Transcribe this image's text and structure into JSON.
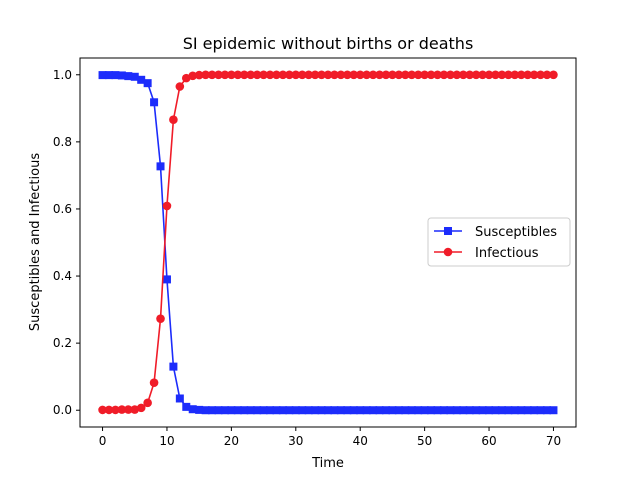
{
  "chart_data": {
    "type": "line",
    "title": "SI epidemic without births or deaths",
    "xlabel": "Time",
    "ylabel": "Susceptibles and Infectious",
    "xlim": [
      -3.5,
      73.5
    ],
    "ylim": [
      -0.05,
      1.05
    ],
    "xticks": [
      0,
      10,
      20,
      30,
      40,
      50,
      60,
      70
    ],
    "yticks": [
      0.0,
      0.2,
      0.4,
      0.6,
      0.8,
      1.0
    ],
    "xtick_labels": [
      "0",
      "10",
      "20",
      "30",
      "40",
      "50",
      "60",
      "70"
    ],
    "ytick_labels": [
      "0.0",
      "0.2",
      "0.4",
      "0.6",
      "0.8",
      "1.0"
    ],
    "grid": false,
    "legend_position": "center-right",
    "x": [
      0,
      1,
      2,
      3,
      4,
      5,
      6,
      7,
      8,
      9,
      10,
      11,
      12,
      13,
      14,
      15,
      16,
      17,
      18,
      19,
      20,
      21,
      22,
      23,
      24,
      25,
      26,
      27,
      28,
      29,
      30,
      31,
      32,
      33,
      34,
      35,
      36,
      37,
      38,
      39,
      40,
      41,
      42,
      43,
      44,
      45,
      46,
      47,
      48,
      49,
      50,
      51,
      52,
      53,
      54,
      55,
      56,
      57,
      58,
      59,
      60,
      61,
      62,
      63,
      64,
      65,
      66,
      67,
      68,
      69,
      70
    ],
    "series": [
      {
        "name": "Susceptibles",
        "color": "#1c2cfb",
        "marker": "square",
        "values": [
          0.999,
          0.999,
          0.999,
          0.998,
          0.996,
          0.994,
          0.985,
          0.975,
          0.918,
          0.727,
          0.39,
          0.13,
          0.035,
          0.01,
          0.003,
          0.001,
          0.0,
          0.0,
          0.0,
          0.0,
          0.0,
          0.0,
          0.0,
          0.0,
          0.0,
          0.0,
          0.0,
          0.0,
          0.0,
          0.0,
          0.0,
          0.0,
          0.0,
          0.0,
          0.0,
          0.0,
          0.0,
          0.0,
          0.0,
          0.0,
          0.0,
          0.0,
          0.0,
          0.0,
          0.0,
          0.0,
          0.0,
          0.0,
          0.0,
          0.0,
          0.0,
          0.0,
          0.0,
          0.0,
          0.0,
          0.0,
          0.0,
          0.0,
          0.0,
          0.0,
          0.0,
          0.0,
          0.0,
          0.0,
          0.0,
          0.0,
          0.0,
          0.0,
          0.0,
          0.0,
          0.0
        ]
      },
      {
        "name": "Infectious",
        "color": "#f01c28",
        "marker": "circle",
        "values": [
          0.001,
          0.001,
          0.001,
          0.002,
          0.002,
          0.002,
          0.007,
          0.022,
          0.082,
          0.273,
          0.609,
          0.866,
          0.965,
          0.99,
          0.997,
          0.999,
          1.0,
          1.0,
          1.0,
          1.0,
          1.0,
          1.0,
          1.0,
          1.0,
          1.0,
          1.0,
          1.0,
          1.0,
          1.0,
          1.0,
          1.0,
          1.0,
          1.0,
          1.0,
          1.0,
          1.0,
          1.0,
          1.0,
          1.0,
          1.0,
          1.0,
          1.0,
          1.0,
          1.0,
          1.0,
          1.0,
          1.0,
          1.0,
          1.0,
          1.0,
          1.0,
          1.0,
          1.0,
          1.0,
          1.0,
          1.0,
          1.0,
          1.0,
          1.0,
          1.0,
          1.0,
          1.0,
          1.0,
          1.0,
          1.0,
          1.0,
          1.0,
          1.0,
          1.0,
          1.0,
          1.0
        ]
      }
    ]
  }
}
